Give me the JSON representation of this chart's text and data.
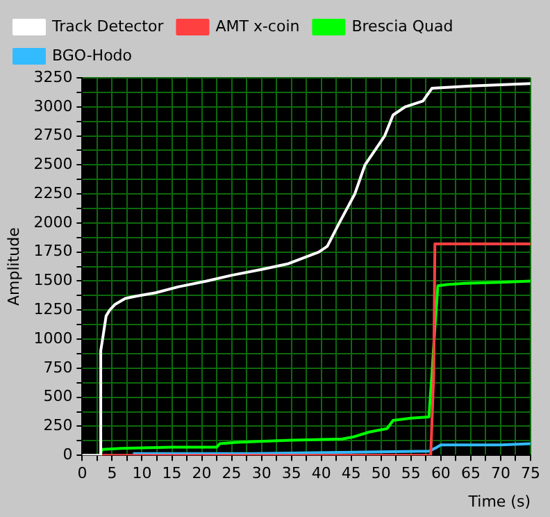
{
  "chart_data": {
    "type": "line",
    "xlabel": "Time (s)",
    "ylabel": "Amplitude",
    "legend": "top left",
    "grid": true,
    "marker": "none",
    "line_style": "solid",
    "xlim": [
      0,
      75
    ],
    "ylim": [
      0,
      3250
    ],
    "xticks": [
      0,
      {
        "value": 2.5,
        "label": null
      },
      5,
      {
        "value": 7.5,
        "label": null
      },
      10,
      {
        "value": 12.5,
        "label": null
      },
      15,
      {
        "value": 17.5,
        "label": null
      },
      20,
      {
        "value": 22.5,
        "label": null
      },
      25,
      {
        "value": 27.5,
        "label": null
      },
      30,
      {
        "value": 32.5,
        "label": null
      },
      35,
      {
        "value": 37.5,
        "label": null
      },
      40,
      {
        "value": 42.5,
        "label": null
      },
      45,
      {
        "value": 47.5,
        "label": null
      },
      50,
      {
        "value": 52.5,
        "label": null
      },
      55,
      {
        "value": 57.5,
        "label": null
      },
      60,
      {
        "value": 62.5,
        "label": null
      },
      65,
      {
        "value": 67.5,
        "label": null
      },
      70,
      {
        "value": 72.5,
        "label": null
      },
      75
    ],
    "yticks": [
      0,
      {
        "value": 125,
        "label": null
      },
      250,
      {
        "value": 375,
        "label": null
      },
      500,
      {
        "value": 625,
        "label": null
      },
      750,
      {
        "value": 875,
        "label": null
      },
      1000,
      {
        "value": 1125,
        "label": null
      },
      1250,
      {
        "value": 1375,
        "label": null
      },
      1500,
      {
        "value": 1625,
        "label": null
      },
      1750,
      {
        "value": 1875,
        "label": null
      },
      2000,
      {
        "value": 2125,
        "label": null
      },
      2250,
      {
        "value": 2375,
        "label": null
      },
      2500,
      {
        "value": 2625,
        "label": null
      },
      2750,
      {
        "value": 2875,
        "label": null
      },
      3000,
      {
        "value": 3125,
        "label": null
      },
      3250
    ],
    "series": [
      {
        "name": "Track Detector",
        "color": "#ffffff",
        "x": [
          0,
          3,
          3.1,
          3.5,
          4,
          4.6,
          5.5,
          7.2,
          9,
          12.3,
          16,
          20.8,
          25,
          30,
          34.5,
          39.6,
          41,
          43,
          45.6,
          47.3,
          50.6,
          52,
          54,
          57,
          58.5,
          65,
          75
        ],
        "values": [
          0,
          0,
          900,
          1030,
          1200,
          1250,
          1300,
          1350,
          1370,
          1400,
          1450,
          1500,
          1550,
          1600,
          1650,
          1750,
          1800,
          2000,
          2250,
          2500,
          2750,
          2930,
          3000,
          3050,
          3160,
          3180,
          3200
        ]
      },
      {
        "name": "AMT x-coin",
        "color": "#ff4040",
        "x": [
          3,
          58.3,
          58.8,
          59,
          75
        ],
        "values": [
          0,
          0,
          700,
          1820,
          1820
        ]
      },
      {
        "name": "Brescia Quad",
        "color": "#00ff00",
        "x": [
          3,
          3.3,
          6.5,
          15,
          22.5,
          23,
          25.5,
          29.5,
          35,
          43.5,
          45.5,
          48,
          51,
          52,
          55,
          58,
          58.5,
          59,
          59.5,
          61,
          64,
          70,
          75
        ],
        "values": [
          0,
          50,
          60,
          70,
          70,
          100,
          110,
          120,
          130,
          140,
          160,
          200,
          230,
          300,
          320,
          330,
          700,
          1100,
          1460,
          1470,
          1480,
          1490,
          1500
        ]
      },
      {
        "name": "BGO-Hodo",
        "color": "#33bbff",
        "x": [
          8.5,
          28.5,
          43,
          58,
          59,
          60,
          70,
          75
        ],
        "values": [
          15,
          15,
          25,
          35,
          60,
          90,
          90,
          100
        ]
      }
    ]
  }
}
